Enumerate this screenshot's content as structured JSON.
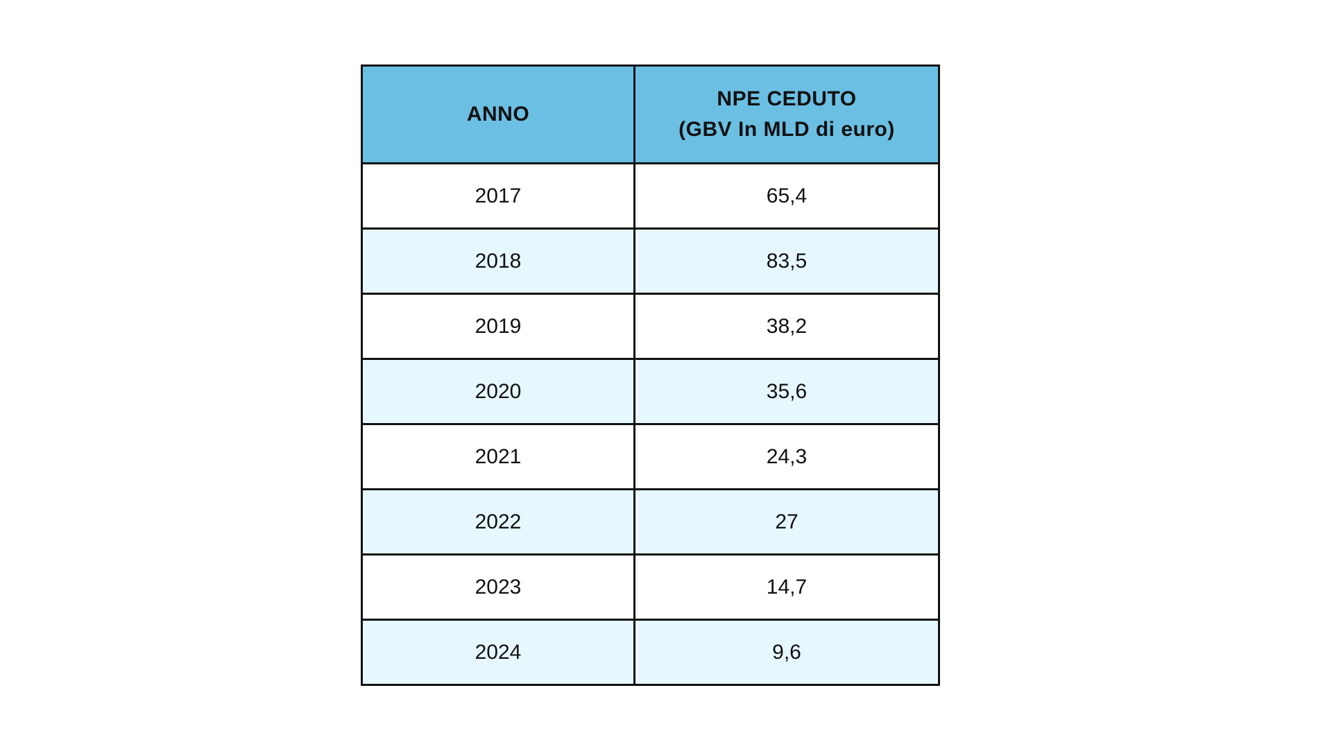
{
  "colors": {
    "header_bg": "#6bbfe2",
    "row_odd_bg": "#ffffff",
    "row_even_bg": "#e6f7fd",
    "border": "#111111"
  },
  "chart_data": {
    "type": "table",
    "columns": [
      "ANNO",
      "NPE CEDUTO (GBV In MLD di euro)"
    ],
    "header": {
      "year": "ANNO",
      "value_line1": "NPE CEDUTO",
      "value_line2": "(GBV In MLD di euro)"
    },
    "rows": [
      {
        "year": "2017",
        "value": "65,4"
      },
      {
        "year": "2018",
        "value": "83,5"
      },
      {
        "year": "2019",
        "value": "38,2"
      },
      {
        "year": "2020",
        "value": "35,6"
      },
      {
        "year": "2021",
        "value": "24,3"
      },
      {
        "year": "2022",
        "value": "27"
      },
      {
        "year": "2023",
        "value": "14,7"
      },
      {
        "year": "2024",
        "value": "9,6"
      }
    ]
  }
}
